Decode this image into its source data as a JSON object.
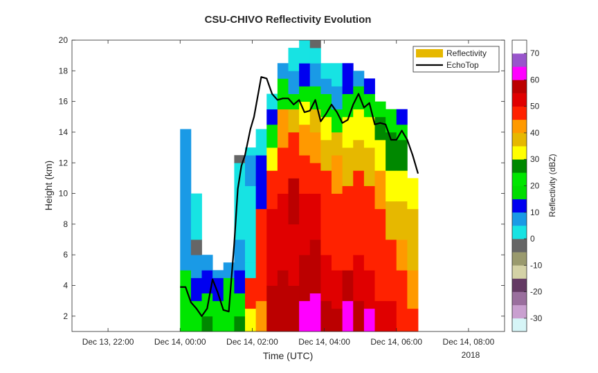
{
  "chart_data": {
    "type": "heatmap",
    "title": "CSU-CHIVO Reflectivity Evolution",
    "xlabel": "Time (UTC)",
    "ylabel": "Height (km)",
    "year_label": "2018",
    "x_tick_labels": [
      "Dec 13, 22:00",
      "Dec 14, 00:00",
      "Dec 14, 02:00",
      "Dec 14, 04:00",
      "Dec 14, 06:00",
      "Dec 14, 08:00"
    ],
    "x_ticks_hours": [
      -2,
      0,
      2,
      4,
      6,
      8
    ],
    "xlim_hours": [
      -3,
      9
    ],
    "y_ticks": [
      2,
      4,
      6,
      8,
      10,
      12,
      14,
      16,
      18,
      20
    ],
    "ylim": [
      1,
      20
    ],
    "colorbar": {
      "label": "Reflectivity (dBZ)",
      "range": [
        -35,
        75
      ],
      "tick_values": [
        70,
        60,
        50,
        40,
        30,
        20,
        10,
        0,
        -10,
        -20,
        -30
      ],
      "tick_labels": [
        "70",
        "60",
        "50",
        "40",
        "30",
        "20",
        "10",
        "0",
        "-10",
        "-20",
        "-30"
      ],
      "bins": [
        {
          "min": -35,
          "max": -30,
          "color": "#d6f5f7"
        },
        {
          "min": -30,
          "max": -25,
          "color": "#c9a0d0"
        },
        {
          "min": -25,
          "max": -20,
          "color": "#9a6f9e"
        },
        {
          "min": -20,
          "max": -15,
          "color": "#643a64"
        },
        {
          "min": -15,
          "max": -10,
          "color": "#d4d2a6"
        },
        {
          "min": -10,
          "max": -5,
          "color": "#9a9a6e"
        },
        {
          "min": -5,
          "max": 0,
          "color": "#666666"
        },
        {
          "min": 0,
          "max": 5,
          "color": "#17e3e3"
        },
        {
          "min": 5,
          "max": 10,
          "color": "#1a9ae6"
        },
        {
          "min": 10,
          "max": 15,
          "color": "#0000f0"
        },
        {
          "min": 15,
          "max": 20,
          "color": "#00dd00"
        },
        {
          "min": 20,
          "max": 25,
          "color": "#00e600"
        },
        {
          "min": 25,
          "max": 30,
          "color": "#008800"
        },
        {
          "min": 30,
          "max": 35,
          "color": "#ffff00"
        },
        {
          "min": 35,
          "max": 40,
          "color": "#e6b800"
        },
        {
          "min": 40,
          "max": 45,
          "color": "#ff9900"
        },
        {
          "min": 45,
          "max": 50,
          "color": "#ff2200"
        },
        {
          "min": 50,
          "max": 55,
          "color": "#e00000"
        },
        {
          "min": 55,
          "max": 60,
          "color": "#bb0000"
        },
        {
          "min": 60,
          "max": 65,
          "color": "#ff00ff"
        },
        {
          "min": 65,
          "max": 70,
          "color": "#9955cc"
        },
        {
          "min": 70,
          "max": 75,
          "color": "#ffffff"
        }
      ]
    },
    "legend": {
      "placement": "top-right",
      "entries": [
        {
          "label": "Reflectivity",
          "kind": "patch",
          "color": "#e6b800"
        },
        {
          "label": "EchoTop",
          "kind": "line",
          "color": "#000000"
        }
      ]
    },
    "echotop": {
      "name": "EchoTop",
      "color": "#000000",
      "x_hours": [
        0.0,
        0.15,
        0.3,
        0.45,
        0.6,
        0.75,
        0.9,
        1.05,
        1.2,
        1.35,
        1.5,
        1.6,
        1.7,
        1.8,
        1.95,
        2.05,
        2.25,
        2.4,
        2.55,
        2.7,
        2.85,
        3.0,
        3.15,
        3.3,
        3.45,
        3.6,
        3.75,
        3.9,
        4.05,
        4.2,
        4.35,
        4.5,
        4.65,
        4.8,
        4.95,
        5.1,
        5.25,
        5.4,
        5.55,
        5.7,
        5.85,
        6.0,
        6.15,
        6.3,
        6.45,
        6.6
      ],
      "height_km": [
        3.9,
        3.9,
        2.9,
        2.5,
        2.0,
        2.5,
        4.4,
        3.5,
        2.4,
        2.3,
        6.7,
        10.3,
        11.8,
        12.5,
        14.2,
        15.0,
        17.6,
        17.5,
        16.5,
        16.1,
        16.2,
        16.2,
        15.8,
        16.1,
        15.3,
        15.4,
        16.1,
        14.7,
        15.2,
        15.8,
        15.3,
        14.6,
        14.8,
        15.8,
        16.5,
        15.6,
        15.9,
        14.5,
        14.6,
        14.5,
        13.5,
        13.5,
        14.1,
        13.5,
        12.5,
        11.3
      ]
    },
    "reflectivity_columns": [
      {
        "t_hours": 0.0,
        "segments": [
          [
            1,
            4,
            20
          ],
          [
            4,
            5,
            20
          ],
          [
            5,
            14.2,
            8
          ]
        ]
      },
      {
        "t_hours": 0.3,
        "segments": [
          [
            1,
            3,
            20
          ],
          [
            3,
            4.5,
            12
          ],
          [
            4.5,
            6,
            8
          ],
          [
            6,
            7,
            -5
          ],
          [
            7,
            10,
            2
          ]
        ]
      },
      {
        "t_hours": 0.6,
        "segments": [
          [
            1,
            2,
            28
          ],
          [
            2,
            3.5,
            20
          ],
          [
            3.5,
            5,
            12
          ],
          [
            5,
            6,
            8
          ]
        ]
      },
      {
        "t_hours": 0.9,
        "segments": [
          [
            1,
            3,
            20
          ],
          [
            3,
            4.5,
            12
          ],
          [
            4.5,
            5,
            8
          ]
        ]
      },
      {
        "t_hours": 1.2,
        "segments": [
          [
            1,
            2.5,
            20
          ],
          [
            2.5,
            4.5,
            20
          ],
          [
            4.5,
            5.5,
            8
          ]
        ]
      },
      {
        "t_hours": 1.5,
        "segments": [
          [
            1,
            2,
            25
          ],
          [
            2,
            3.5,
            20
          ],
          [
            3.5,
            5,
            12
          ],
          [
            5,
            7,
            8
          ],
          [
            7,
            12,
            2
          ],
          [
            12,
            12.5,
            -5
          ]
        ]
      },
      {
        "t_hours": 1.8,
        "segments": [
          [
            1,
            2.5,
            30
          ],
          [
            2.5,
            4.5,
            45
          ],
          [
            4.5,
            5.5,
            3
          ],
          [
            5.5,
            10.5,
            2
          ],
          [
            10.5,
            12.5,
            8
          ],
          [
            12.5,
            13,
            3
          ]
        ]
      },
      {
        "t_hours": 2.1,
        "segments": [
          [
            1,
            3,
            40
          ],
          [
            3,
            5,
            48
          ],
          [
            5,
            9,
            48
          ],
          [
            9,
            12.5,
            12
          ],
          [
            12.5,
            14.2,
            2
          ]
        ]
      },
      {
        "t_hours": 2.4,
        "segments": [
          [
            1,
            4,
            55
          ],
          [
            4,
            9,
            52
          ],
          [
            9,
            11.5,
            48
          ],
          [
            11.5,
            13,
            30
          ],
          [
            13,
            14.5,
            20
          ],
          [
            14.5,
            15.5,
            12
          ],
          [
            15.5,
            16.5,
            2
          ]
        ]
      },
      {
        "t_hours": 2.7,
        "segments": [
          [
            1,
            5,
            57
          ],
          [
            5,
            10,
            52
          ],
          [
            10,
            13,
            48
          ],
          [
            13,
            15.5,
            40
          ],
          [
            15.5,
            17.5,
            20
          ],
          [
            17.5,
            18.5,
            8
          ]
        ]
      },
      {
        "t_hours": 3.0,
        "segments": [
          [
            1,
            4,
            55
          ],
          [
            4,
            8,
            52
          ],
          [
            8,
            11,
            55
          ],
          [
            11,
            14,
            45
          ],
          [
            14,
            15.5,
            35
          ],
          [
            15.5,
            16.5,
            20
          ],
          [
            16.5,
            18,
            8
          ],
          [
            18,
            19.5,
            2
          ]
        ]
      },
      {
        "t_hours": 3.3,
        "segments": [
          [
            1,
            3,
            62
          ],
          [
            3,
            6,
            55
          ],
          [
            6,
            10,
            52
          ],
          [
            10,
            12.5,
            48
          ],
          [
            12.5,
            14.5,
            40
          ],
          [
            14.5,
            16,
            30
          ],
          [
            16,
            17,
            20
          ],
          [
            17,
            18.5,
            12
          ],
          [
            18.5,
            20,
            2
          ]
        ]
      },
      {
        "t_hours": 3.6,
        "segments": [
          [
            1,
            3.5,
            62
          ],
          [
            3.5,
            7,
            55
          ],
          [
            7,
            10,
            52
          ],
          [
            10,
            12,
            45
          ],
          [
            12,
            14,
            40
          ],
          [
            14,
            15.5,
            35
          ],
          [
            15.5,
            17,
            20
          ],
          [
            17,
            18.5,
            8
          ],
          [
            18.5,
            19.5,
            2
          ],
          [
            19.5,
            20,
            -5
          ]
        ]
      },
      {
        "t_hours": 3.9,
        "segments": [
          [
            1,
            3,
            55
          ],
          [
            3,
            6,
            52
          ],
          [
            6,
            9,
            48
          ],
          [
            9,
            11.5,
            45
          ],
          [
            11.5,
            13.5,
            35
          ],
          [
            13.5,
            15,
            30
          ],
          [
            15,
            16.5,
            20
          ],
          [
            16.5,
            17.5,
            8
          ],
          [
            17.5,
            18.5,
            2
          ]
        ]
      },
      {
        "t_hours": 4.2,
        "segments": [
          [
            1,
            2.5,
            55
          ],
          [
            2.5,
            5,
            52
          ],
          [
            5,
            8,
            48
          ],
          [
            8,
            10,
            45
          ],
          [
            10,
            12.5,
            40
          ],
          [
            12.5,
            14,
            35
          ],
          [
            14,
            15.5,
            20
          ],
          [
            15.5,
            17,
            8
          ],
          [
            17,
            18.5,
            2
          ]
        ]
      },
      {
        "t_hours": 4.5,
        "segments": [
          [
            1,
            3,
            62
          ],
          [
            3,
            5,
            55
          ],
          [
            5,
            8,
            48
          ],
          [
            8,
            10.5,
            45
          ],
          [
            10.5,
            13,
            35
          ],
          [
            13,
            15,
            30
          ],
          [
            15,
            16.5,
            20
          ],
          [
            16.5,
            18.5,
            12
          ]
        ]
      },
      {
        "t_hours": 4.8,
        "segments": [
          [
            1,
            3,
            55
          ],
          [
            3,
            6,
            52
          ],
          [
            6,
            9,
            48
          ],
          [
            9,
            11.5,
            45
          ],
          [
            11.5,
            13.5,
            38
          ],
          [
            13.5,
            15.5,
            30
          ],
          [
            15.5,
            17,
            15
          ],
          [
            17,
            18,
            8
          ]
        ]
      },
      {
        "t_hours": 5.1,
        "segments": [
          [
            1,
            2.5,
            62
          ],
          [
            2.5,
            5,
            52
          ],
          [
            5,
            8,
            48
          ],
          [
            8,
            10.5,
            45
          ],
          [
            10.5,
            13,
            35
          ],
          [
            13,
            15,
            30
          ],
          [
            15,
            16.5,
            20
          ],
          [
            16.5,
            17.5,
            12
          ]
        ]
      },
      {
        "t_hours": 5.4,
        "segments": [
          [
            1,
            3,
            52
          ],
          [
            3,
            6,
            48
          ],
          [
            6,
            9,
            45
          ],
          [
            9,
            11.5,
            40
          ],
          [
            11.5,
            13.5,
            33
          ],
          [
            13.5,
            15,
            25
          ],
          [
            15,
            16,
            20
          ]
        ]
      },
      {
        "t_hours": 5.7,
        "segments": [
          [
            1,
            3,
            50
          ],
          [
            3,
            5,
            48
          ],
          [
            5,
            7,
            45
          ],
          [
            7,
            9.5,
            38
          ],
          [
            9.5,
            11.5,
            30
          ],
          [
            11.5,
            14,
            25
          ],
          [
            14,
            15.5,
            20
          ]
        ]
      },
      {
        "t_hours": 6.0,
        "segments": [
          [
            1,
            3,
            48
          ],
          [
            3,
            5,
            45
          ],
          [
            5,
            7,
            40
          ],
          [
            7,
            9.5,
            38
          ],
          [
            9.5,
            11.5,
            30
          ],
          [
            11.5,
            13.5,
            25
          ],
          [
            13.5,
            14.5,
            20
          ],
          [
            14.5,
            15.5,
            12
          ]
        ]
      },
      {
        "t_hours": 6.3,
        "segments": [
          [
            1,
            2.5,
            45
          ],
          [
            2.5,
            5,
            42
          ],
          [
            5,
            7,
            38
          ],
          [
            7,
            9,
            35
          ],
          [
            9,
            11,
            30
          ]
        ]
      }
    ]
  }
}
